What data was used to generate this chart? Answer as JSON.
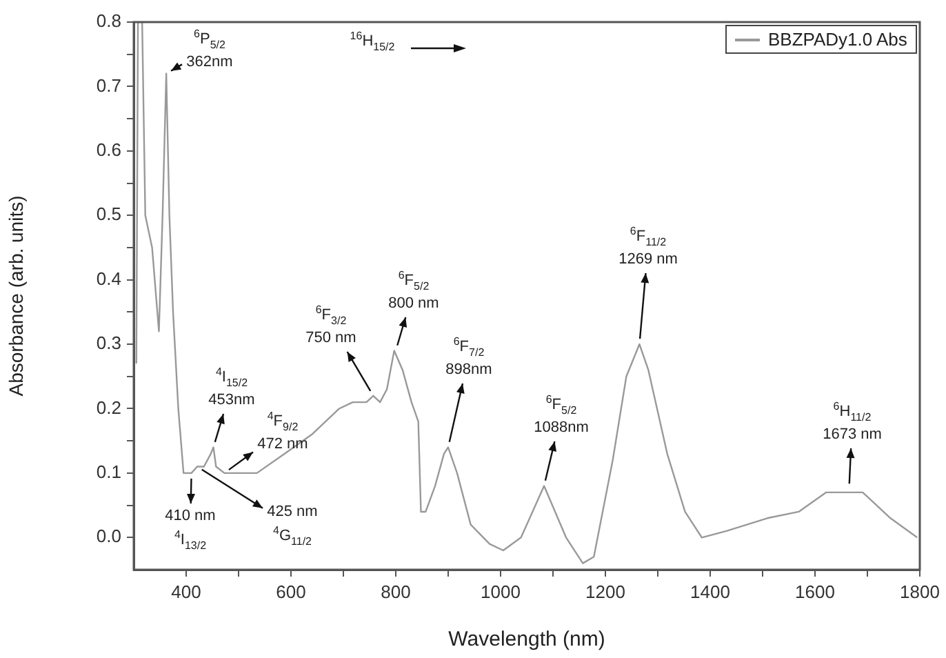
{
  "chart_data": {
    "type": "line",
    "xlabel": "Wavelength (nm)",
    "ylabel": "Absorbance (arb. units)",
    "legend": "top right",
    "x": [
      305,
      308,
      316,
      322,
      335,
      348,
      355,
      362,
      368,
      375,
      385,
      395,
      410,
      421,
      434,
      447,
      452,
      457,
      473,
      499,
      535,
      588,
      640,
      692,
      718,
      744,
      757,
      770,
      783,
      797,
      813,
      830,
      843,
      848,
      857,
      875,
      892,
      900,
      917,
      943,
      979,
      1005,
      1039,
      1083,
      1125,
      1157,
      1178,
      1214,
      1240,
      1265,
      1282,
      1318,
      1352,
      1384,
      1431,
      1509,
      1569,
      1621,
      1665,
      1691,
      1744,
      1795
    ],
    "series": [
      {
        "name": "BBZPADy1.0 Abs",
        "color": "#999999",
        "values": [
          0.27,
          0.8,
          0.8,
          0.5,
          0.45,
          0.32,
          0.5,
          0.72,
          0.5,
          0.35,
          0.2,
          0.1,
          0.1,
          0.11,
          0.11,
          0.13,
          0.14,
          0.11,
          0.1,
          0.1,
          0.1,
          0.13,
          0.16,
          0.2,
          0.21,
          0.21,
          0.22,
          0.21,
          0.23,
          0.29,
          0.26,
          0.21,
          0.18,
          0.04,
          0.04,
          0.08,
          0.13,
          0.14,
          0.1,
          0.02,
          -0.01,
          -0.02,
          0,
          0.08,
          0,
          -0.04,
          -0.03,
          0.12,
          0.25,
          0.3,
          0.26,
          0.13,
          0.04,
          0,
          0.01,
          0.03,
          0.04,
          0.07,
          0.07,
          0.07,
          0.03,
          0
        ]
      }
    ],
    "xlim": [
      300,
      1800
    ],
    "xticks": [
      400,
      {
        "value": 500,
        "label": null
      },
      600,
      {
        "value": 700,
        "label": null
      },
      800,
      {
        "value": 900,
        "label": null
      },
      1000,
      {
        "value": 1100,
        "label": null
      },
      1200,
      {
        "value": 1300,
        "label": null
      },
      1400,
      {
        "value": 1500,
        "label": null
      },
      1600,
      {
        "value": 1700,
        "label": null
      },
      1800
    ],
    "ylim": [
      -0.05,
      0.8
    ],
    "yticks": [
      {
        "value": 0,
        "label": "0.0"
      },
      {
        "value": 0.05,
        "label": null
      },
      0.1,
      {
        "value": 0.15,
        "label": null
      },
      0.2,
      {
        "value": 0.25,
        "label": null
      },
      0.3,
      {
        "value": 0.35,
        "label": null
      },
      0.4,
      {
        "value": 0.45,
        "label": null
      },
      0.5,
      {
        "value": 0.55,
        "label": null
      },
      0.6,
      {
        "value": 0.65,
        "label": null
      },
      0.7,
      {
        "value": 0.75,
        "label": null
      },
      0.8
    ],
    "annotations": [
      {
        "text": "$^{6}$P$_{5/2}$\n362nm",
        "x": 362,
        "y": 0.72
      },
      "$^{16}$H$_{15/2}$",
      {
        "text": "$^{6}$F$_{3/2}$\n750 nm",
        "x": 757,
        "y": 0.22
      },
      {
        "text": "$^{6}$F$_{5/2}$\n800 nm",
        "x": 800,
        "y": 0.29
      },
      {
        "text": "$^{6}$F$_{7/2}$\n898nm",
        "x": 900,
        "y": 0.14
      },
      {
        "text": "$^{6}$F$_{5/2}$\n1088nm",
        "x": 1083,
        "y": 0.08
      },
      {
        "text": "$^{6}$F$_{11/2}$\n1269 nm",
        "x": 1265,
        "y": 0.3
      },
      {
        "text": "$^{6}$H$_{11/2}$\n1673 nm",
        "x": 1665,
        "y": 0.075
      },
      {
        "text": "$^{4}$I$_{15/2}$\n453nm",
        "x": 452,
        "y": 0.14
      },
      {
        "text": "$^{4}$F$_{9/2}$\n472 nm",
        "x": 473,
        "y": 0.1
      },
      {
        "text": "410 nm\n$^{4}$I$_{13/2}$",
        "x": 410,
        "y": 0.1
      },
      {
        "text": "425 nm\n$^{4}$G$_{11/2}$",
        "x": 421,
        "y": 0.11
      }
    ]
  }
}
